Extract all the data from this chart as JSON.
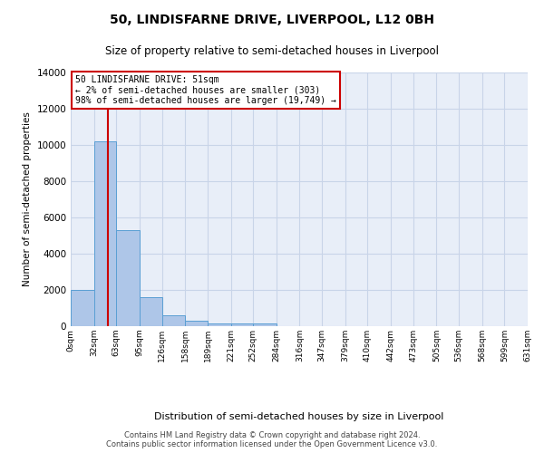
{
  "title": "50, LINDISFARNE DRIVE, LIVERPOOL, L12 0BH",
  "subtitle": "Size of property relative to semi-detached houses in Liverpool",
  "xlabel": "Distribution of semi-detached houses by size in Liverpool",
  "ylabel": "Number of semi-detached properties",
  "footnote": "Contains HM Land Registry data © Crown copyright and database right 2024.\nContains public sector information licensed under the Open Government Licence v3.0.",
  "annotation_title": "50 LINDISFARNE DRIVE: 51sqm",
  "annotation_line1": "← 2% of semi-detached houses are smaller (303)",
  "annotation_line2": "98% of semi-detached houses are larger (19,749) →",
  "property_size": 51,
  "bar_left_edges": [
    0,
    32,
    63,
    95,
    126,
    158,
    189,
    221,
    252,
    284,
    316,
    347,
    379,
    410,
    442,
    473,
    505,
    536,
    568,
    599
  ],
  "bar_widths": [
    32,
    31,
    32,
    31,
    32,
    31,
    32,
    31,
    32,
    32,
    31,
    32,
    31,
    32,
    31,
    32,
    31,
    32,
    31,
    32
  ],
  "bar_heights": [
    2000,
    10200,
    5300,
    1600,
    600,
    280,
    170,
    150,
    130,
    0,
    0,
    0,
    0,
    0,
    0,
    0,
    0,
    0,
    0,
    0
  ],
  "xtick_labels": [
    "0sqm",
    "32sqm",
    "63sqm",
    "95sqm",
    "126sqm",
    "158sqm",
    "189sqm",
    "221sqm",
    "252sqm",
    "284sqm",
    "316sqm",
    "347sqm",
    "379sqm",
    "410sqm",
    "442sqm",
    "473sqm",
    "505sqm",
    "536sqm",
    "568sqm",
    "599sqm",
    "631sqm"
  ],
  "xtick_positions": [
    0,
    32,
    63,
    95,
    126,
    158,
    189,
    221,
    252,
    284,
    316,
    347,
    379,
    410,
    442,
    473,
    505,
    536,
    568,
    599,
    631
  ],
  "ylim": [
    0,
    14000
  ],
  "xlim": [
    0,
    631
  ],
  "bar_color": "#aec6e8",
  "bar_edge_color": "#5a9fd4",
  "vline_color": "#cc0000",
  "annotation_box_color": "#cc0000",
  "grid_color": "#c8d4e8",
  "bg_color": "#e8eef8",
  "title_fontsize": 10,
  "subtitle_fontsize": 8.5,
  "footnote_fontsize": 6.0
}
